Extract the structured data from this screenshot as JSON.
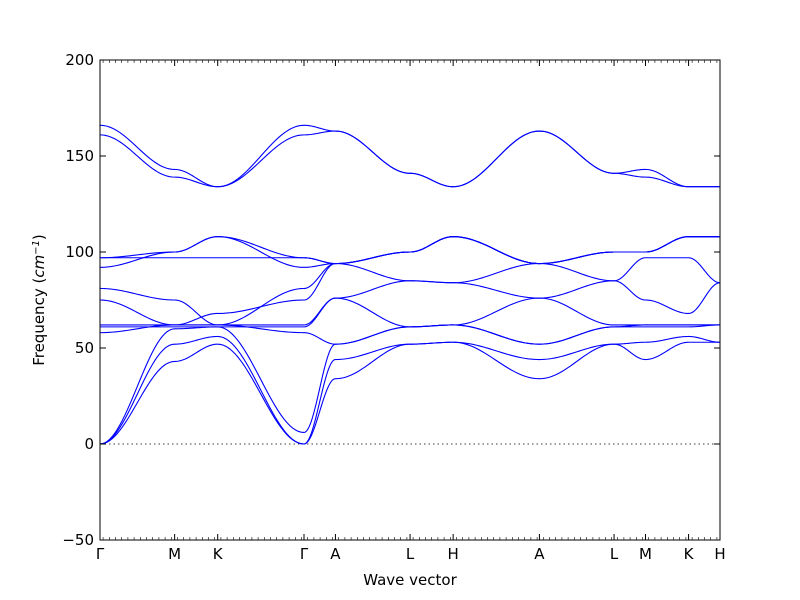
{
  "chart_data": {
    "type": "line",
    "title": "",
    "xlabel": "Wave vector",
    "ylabel": "Frequency",
    "ylabel_unit_html": "cm<tspan baseline-shift=\"super\" font-size=\"10\">−1</tspan>",
    "ylabel_unit_text": "(cm−1)",
    "ylim": [
      -50,
      200
    ],
    "yticks": [
      -50,
      0,
      50,
      100,
      150,
      200
    ],
    "grid": false,
    "zero_reference_line": 0,
    "line_color": "#0000ff",
    "high_symmetry_points": [
      {
        "label": "Γ",
        "x": 0.0
      },
      {
        "label": "M",
        "x": 0.577
      },
      {
        "label": "K",
        "x": 0.91
      },
      {
        "label": "Γ",
        "x": 1.577
      },
      {
        "label": "A",
        "x": 1.82
      },
      {
        "label": "L",
        "x": 2.397
      },
      {
        "label": "H",
        "x": 2.73
      },
      {
        "label": "A",
        "x": 3.397
      },
      {
        "label": "L",
        "x": 3.974
      },
      {
        "label": "M",
        "x": 4.217
      },
      {
        "label": "K",
        "x": 4.55
      },
      {
        "label": "H",
        "x": 4.793
      }
    ],
    "series": [
      {
        "x": [
          0,
          0.577,
          0.91,
          1.577,
          1.82,
          2.397,
          2.73,
          3.397,
          3.974,
          4.217,
          4.55,
          4.793
        ],
        "values": [
          0,
          43,
          52,
          0,
          34,
          52,
          53,
          34,
          52,
          44,
          53,
          53
        ]
      },
      {
        "x": [
          0,
          0.577,
          0.91,
          1.577,
          1.82,
          2.397,
          2.73,
          3.397,
          3.974,
          4.217,
          4.55,
          4.793
        ],
        "values": [
          0,
          52,
          56,
          0,
          44,
          52,
          53,
          44,
          52,
          53,
          56,
          53
        ]
      },
      {
        "x": [
          0,
          0.577,
          0.91,
          1.577,
          1.82,
          2.397,
          2.73,
          3.397,
          3.974,
          4.217,
          4.55,
          4.793
        ],
        "values": [
          0,
          60,
          61,
          6,
          52,
          61,
          62,
          52,
          61,
          61,
          61,
          62
        ]
      },
      {
        "x": [
          0,
          0.577,
          0.91,
          1.577,
          1.82,
          2.397,
          2.73,
          3.397,
          3.974,
          4.217,
          4.55,
          4.793
        ],
        "values": [
          58,
          62,
          62,
          58,
          52,
          61,
          62,
          52,
          61,
          62,
          62,
          62
        ]
      },
      {
        "x": [
          0,
          0.577,
          0.91,
          1.577,
          1.82,
          2.397,
          2.73,
          3.397,
          3.974,
          4.217,
          4.55,
          4.793
        ],
        "values": [
          61,
          61,
          61,
          61,
          76,
          61,
          62,
          76,
          62,
          62,
          62,
          62
        ]
      },
      {
        "x": [
          0,
          0.577,
          0.91,
          1.577,
          1.82,
          2.397,
          2.73,
          3.397,
          3.974,
          4.217,
          4.55,
          4.793
        ],
        "values": [
          62,
          62,
          62,
          62,
          76,
          85,
          84,
          76,
          85,
          75,
          68,
          84
        ]
      },
      {
        "x": [
          0,
          0.577,
          0.91,
          1.577,
          1.82,
          2.397,
          2.73,
          3.397,
          3.974,
          4.217,
          4.55,
          4.793
        ],
        "values": [
          75,
          62,
          68,
          75,
          94,
          85,
          84,
          94,
          85,
          97,
          97,
          84
        ]
      },
      {
        "x": [
          0,
          0.577,
          0.91,
          1.577,
          1.82,
          2.397,
          2.73,
          3.397,
          3.974,
          4.217,
          4.55,
          4.793
        ],
        "values": [
          81,
          75,
          62,
          81,
          94,
          100,
          108,
          94,
          100,
          100,
          108,
          108
        ]
      },
      {
        "x": [
          0,
          0.577,
          0.91,
          1.577,
          1.82,
          2.397,
          2.73,
          3.397,
          3.974,
          4.217,
          4.55,
          4.793
        ],
        "values": [
          92,
          100,
          108,
          92,
          94,
          100,
          108,
          94,
          100,
          100,
          108,
          108
        ]
      },
      {
        "x": [
          0,
          0.577,
          0.91,
          1.577,
          1.82,
          2.397,
          2.73,
          3.397,
          3.974,
          4.217,
          4.55,
          4.793
        ],
        "values": [
          97,
          100,
          108,
          97,
          94,
          100,
          108,
          94,
          100,
          100,
          108,
          108
        ]
      },
      {
        "x": [
          0,
          0.577,
          0.91,
          1.577,
          1.82,
          2.397,
          2.73,
          3.397,
          3.974,
          4.217,
          4.55,
          4.793
        ],
        "values": [
          97,
          97,
          97,
          97,
          94,
          100,
          108,
          94,
          100,
          100,
          108,
          108
        ]
      },
      {
        "x": [
          0,
          0.577,
          0.91,
          1.577,
          1.82,
          2.397,
          2.73,
          3.397,
          3.974,
          4.217,
          4.55,
          4.793
        ],
        "values": [
          161,
          139,
          134,
          161,
          163,
          141,
          134,
          163,
          141,
          139,
          134,
          134
        ]
      },
      {
        "x": [
          0,
          0.577,
          0.91,
          1.577,
          1.82,
          2.397,
          2.73,
          3.397,
          3.974,
          4.217,
          4.55,
          4.793
        ],
        "values": [
          166,
          143,
          134,
          166,
          163,
          141,
          134,
          163,
          141,
          143,
          134,
          134
        ]
      }
    ]
  }
}
